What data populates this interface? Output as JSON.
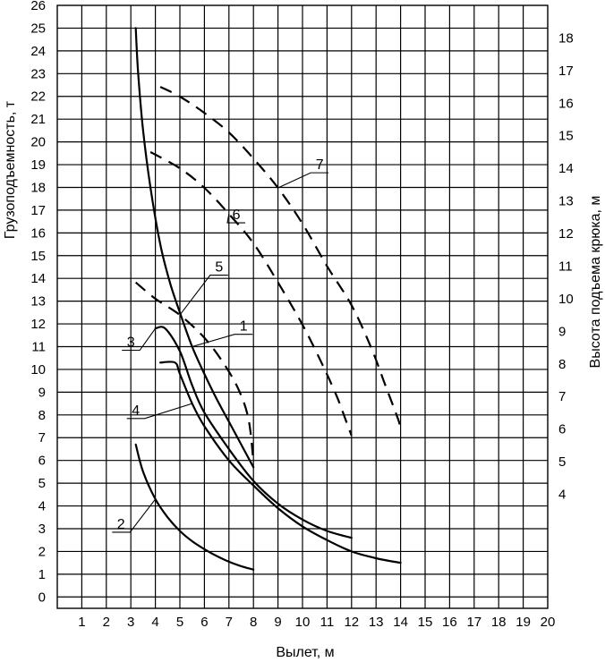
{
  "chart_data": {
    "type": "line",
    "xlabel": "Вылет, м",
    "ylabel": "Грузоподъемность, т",
    "y2label": "Высота подъема крюка, м",
    "xlim": [
      0,
      20
    ],
    "ylim": [
      -0.5,
      26
    ],
    "y2lim": [
      0.5,
      19.0
    ],
    "grid": true,
    "x_ticks": [
      "1",
      "2",
      "3",
      "4",
      "5",
      "6",
      "7",
      "8",
      "9",
      "10",
      "11",
      "12",
      "13",
      "14",
      "15",
      "16",
      "17",
      "18",
      "19",
      "20"
    ],
    "y_ticks": [
      "0",
      "1",
      "2",
      "3",
      "4",
      "5",
      "6",
      "7",
      "8",
      "9",
      "10",
      "11",
      "12",
      "13",
      "14",
      "15",
      "16",
      "17",
      "18",
      "19",
      "20",
      "21",
      "22",
      "23",
      "24",
      "25",
      "26"
    ],
    "y2_ticks": [
      "4",
      "5",
      "6",
      "7",
      "8",
      "9",
      "10",
      "11",
      "12",
      "13",
      "14",
      "15",
      "16",
      "17",
      "18"
    ],
    "series": [
      {
        "name": "1",
        "axis": "left",
        "style": "solid",
        "x": [
          3.2,
          3.3,
          3.5,
          3.8,
          4.2,
          4.6,
          5.0,
          5.5,
          6.0,
          6.5,
          7.0,
          7.5,
          8.0
        ],
        "y": [
          25.0,
          23.0,
          20.5,
          18.0,
          15.5,
          13.8,
          12.5,
          11.0,
          9.8,
          8.7,
          7.7,
          6.7,
          5.7
        ],
        "label_at": [
          7.6,
          11.7
        ]
      },
      {
        "name": "2",
        "axis": "left",
        "style": "solid",
        "x": [
          3.2,
          3.5,
          4.0,
          4.5,
          5.0,
          5.5,
          6.0,
          6.5,
          7.0,
          7.5,
          8.0
        ],
        "y": [
          6.7,
          5.5,
          4.3,
          3.5,
          2.9,
          2.45,
          2.1,
          1.8,
          1.55,
          1.35,
          1.2
        ],
        "label_at": [
          2.6,
          3.0
        ]
      },
      {
        "name": "3",
        "axis": "left",
        "style": "solid",
        "x": [
          4.0,
          4.4,
          5.0,
          5.5,
          6.0,
          7.0,
          8.0,
          9.0,
          10.0,
          11.0,
          12.0
        ],
        "y": [
          11.8,
          11.8,
          10.8,
          9.3,
          8.1,
          6.5,
          5.1,
          4.1,
          3.4,
          2.9,
          2.6
        ],
        "label_at": [
          3.0,
          11.0
        ]
      },
      {
        "name": "4",
        "axis": "left",
        "style": "solid",
        "x": [
          4.2,
          4.8,
          5.0,
          5.5,
          6.0,
          7.0,
          8.0,
          9.0,
          10.0,
          11.0,
          12.0,
          13.0,
          14.0
        ],
        "y": [
          10.3,
          10.3,
          9.8,
          8.5,
          7.5,
          6.0,
          4.9,
          3.9,
          3.1,
          2.5,
          2.0,
          1.7,
          1.5
        ],
        "label_at": [
          3.2,
          8.0
        ]
      },
      {
        "name": "5",
        "axis": "right",
        "style": "dashed",
        "x": [
          3.2,
          4.0,
          5.0,
          6.0,
          6.8,
          7.4,
          7.8,
          8.0
        ],
        "y": [
          10.5,
          10.0,
          9.5,
          8.8,
          8.0,
          7.2,
          6.3,
          5.0
        ],
        "label_at": [
          6.6,
          14.3
        ]
      },
      {
        "name": "6",
        "axis": "right",
        "style": "dashed",
        "x": [
          3.8,
          5.0,
          6.0,
          7.0,
          8.0,
          9.0,
          10.0,
          10.8,
          11.4,
          11.8,
          12.0
        ],
        "y": [
          14.5,
          14.0,
          13.4,
          12.6,
          11.7,
          10.5,
          9.2,
          8.0,
          7.0,
          6.2,
          5.8
        ],
        "label_at": [
          7.3,
          16.6
        ]
      },
      {
        "name": "7",
        "axis": "right",
        "style": "dashed",
        "x": [
          4.2,
          5.0,
          6.0,
          7.0,
          8.0,
          9.0,
          10.0,
          11.0,
          12.0,
          12.8,
          13.4,
          13.9,
          14.0
        ],
        "y": [
          16.5,
          16.2,
          15.7,
          15.1,
          14.3,
          13.4,
          12.3,
          11.0,
          9.8,
          8.5,
          7.3,
          6.3,
          6.0
        ],
        "label_at": [
          10.7,
          18.8
        ]
      }
    ]
  }
}
